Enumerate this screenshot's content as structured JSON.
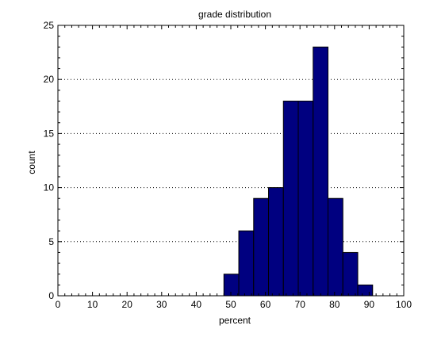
{
  "chart_data": {
    "type": "bar",
    "title": "grade distribution",
    "xlabel": "percent",
    "ylabel": "count",
    "xlim": [
      0,
      100
    ],
    "ylim": [
      0,
      25
    ],
    "xticks": [
      0,
      10,
      20,
      30,
      40,
      50,
      60,
      70,
      80,
      90,
      100
    ],
    "yticks": [
      0,
      5,
      10,
      15,
      20,
      25
    ],
    "grid": "y-dotted",
    "bar_color": "#000080",
    "bins": [
      {
        "start": 48.0,
        "end": 52.3,
        "count": 2
      },
      {
        "start": 52.3,
        "end": 56.6,
        "count": 6
      },
      {
        "start": 56.6,
        "end": 60.9,
        "count": 9
      },
      {
        "start": 60.9,
        "end": 65.2,
        "count": 10
      },
      {
        "start": 65.2,
        "end": 69.5,
        "count": 18
      },
      {
        "start": 69.5,
        "end": 73.8,
        "count": 18
      },
      {
        "start": 73.8,
        "end": 78.1,
        "count": 23
      },
      {
        "start": 78.1,
        "end": 82.4,
        "count": 9
      },
      {
        "start": 82.4,
        "end": 86.7,
        "count": 4
      },
      {
        "start": 86.7,
        "end": 91.0,
        "count": 1
      }
    ]
  }
}
